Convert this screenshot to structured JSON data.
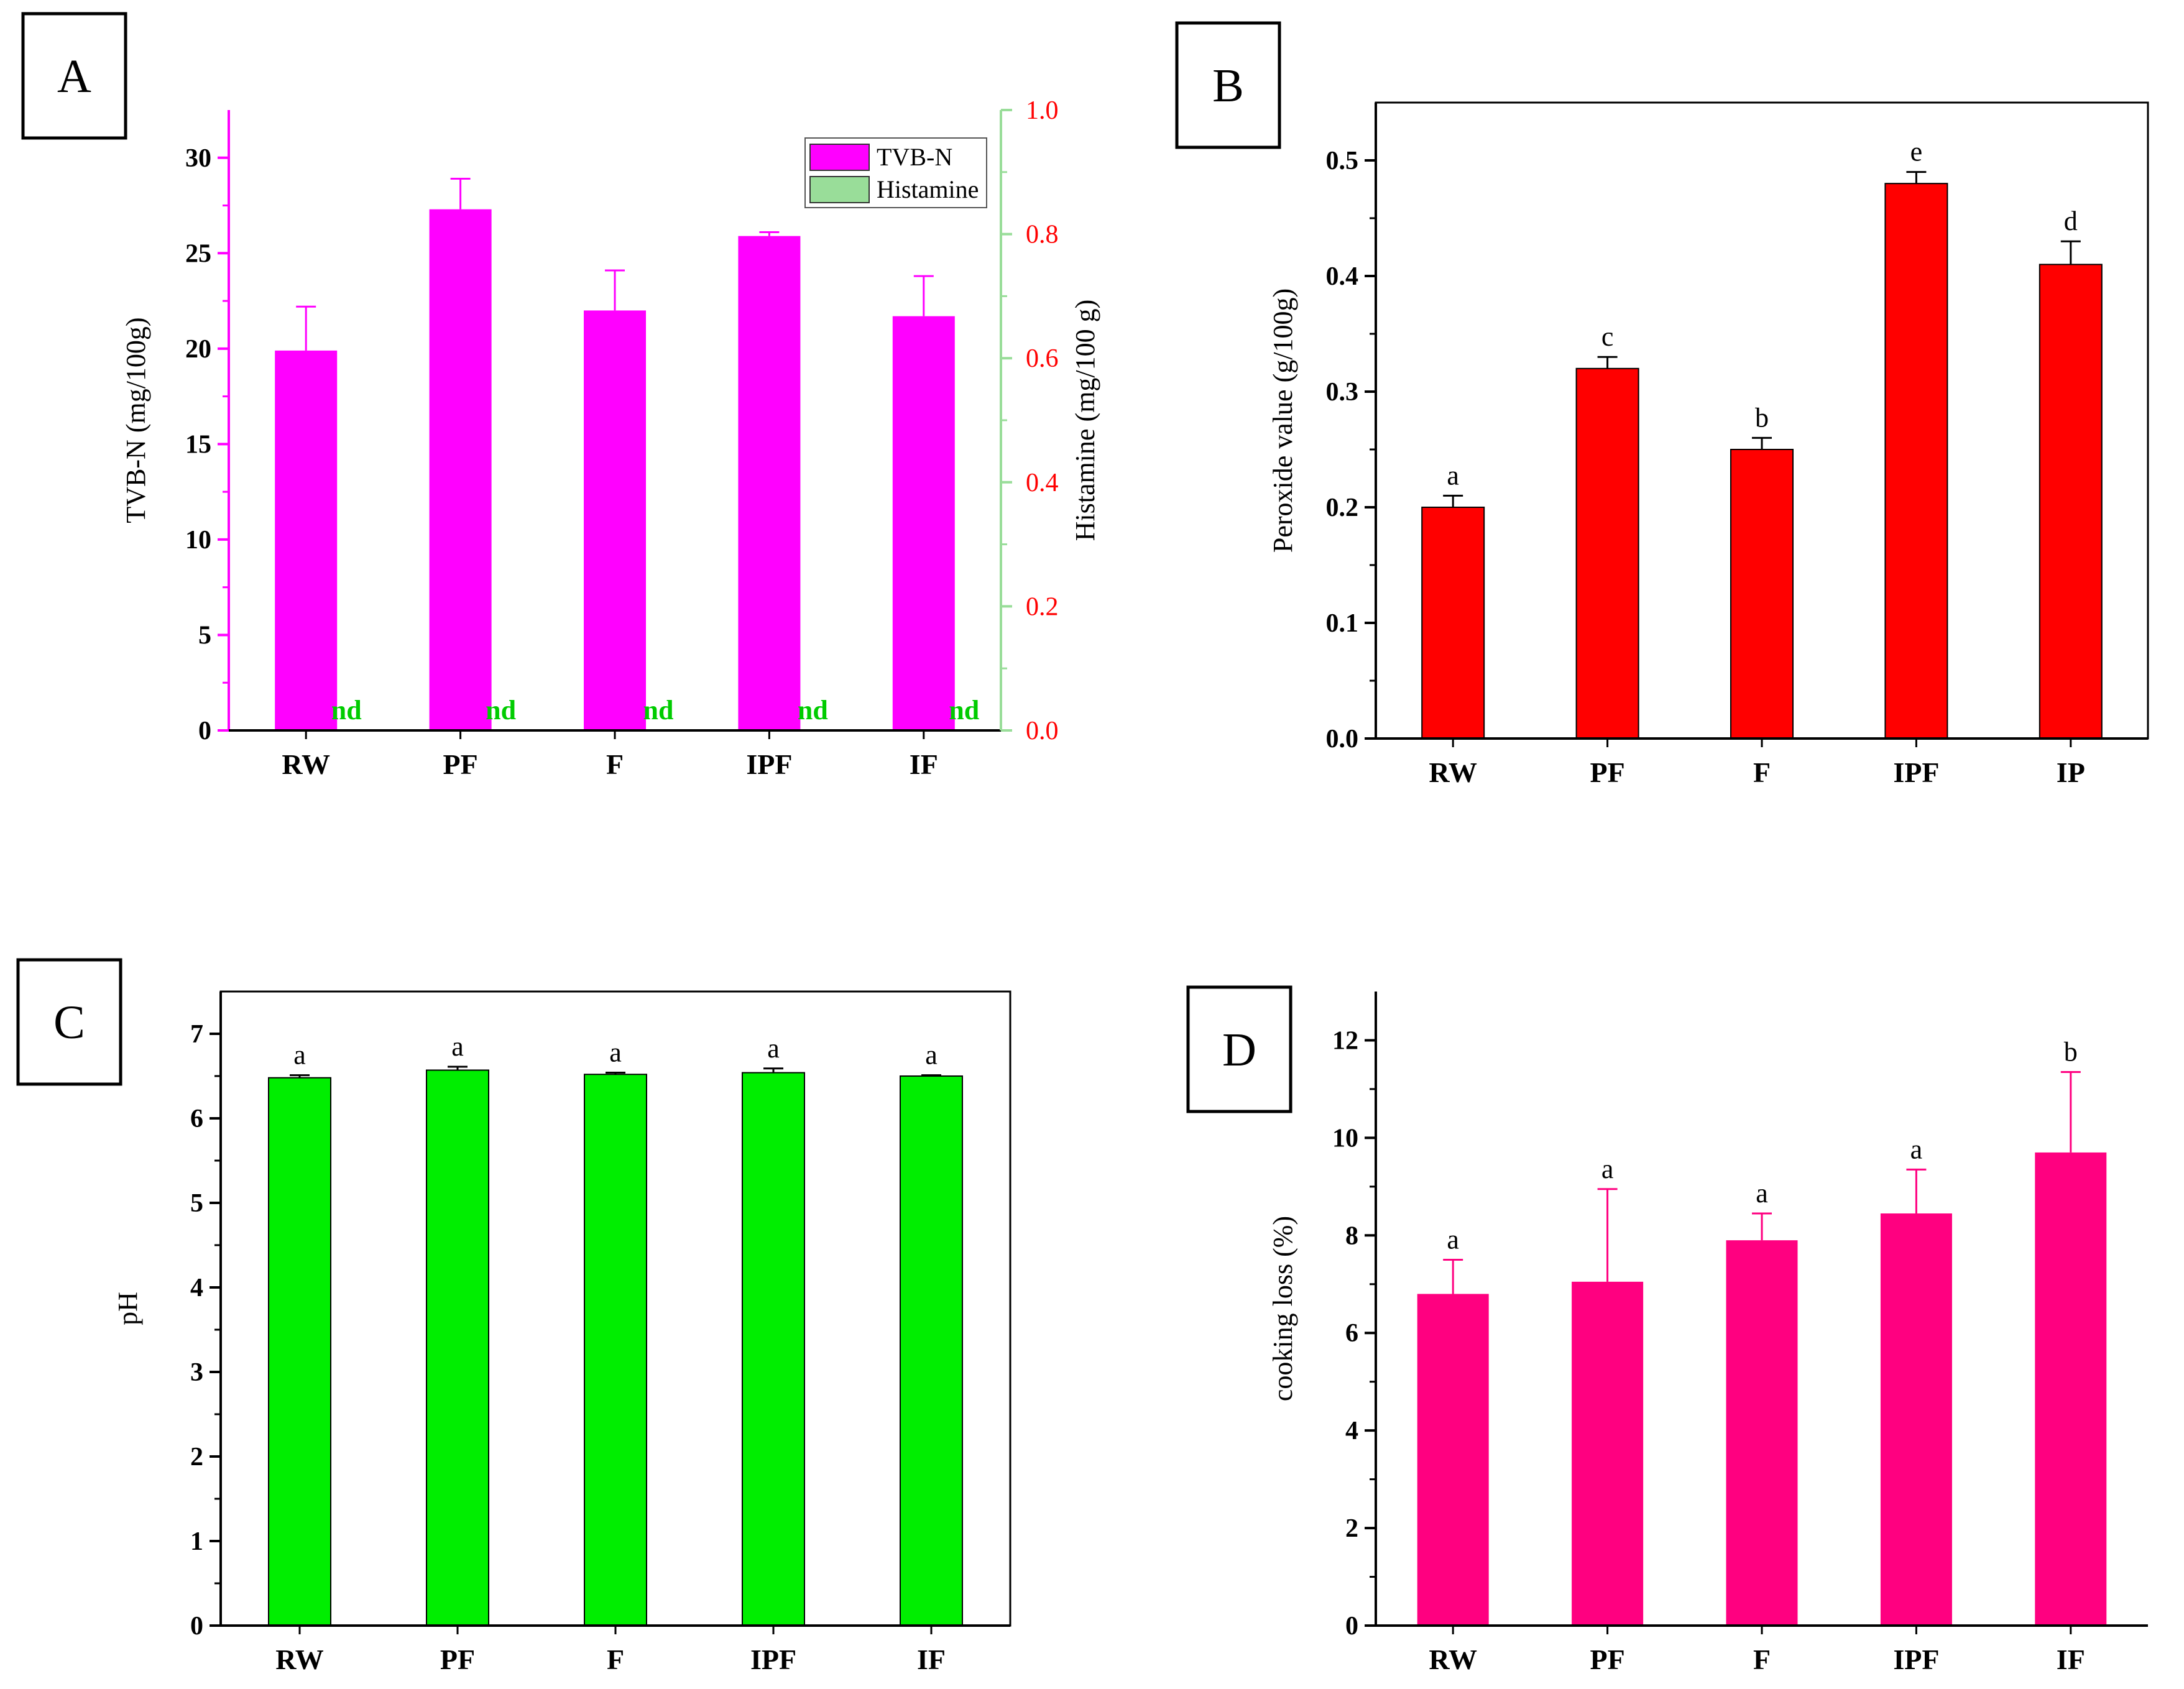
{
  "chart_data": [
    {
      "id": "A",
      "type": "bar",
      "panel_label": "A",
      "categories": [
        "RW",
        "PF",
        "F",
        "IPF",
        "IF"
      ],
      "ylabel": "TVB-N (mg/100g)",
      "ylim": [
        0,
        32.5
      ],
      "yticks": [
        0,
        5,
        10,
        15,
        20,
        25,
        30
      ],
      "y2label": "Histamine (mg/100 g)",
      "y2lim": [
        0,
        1.0
      ],
      "y2ticks": [
        "0.0",
        "0.2",
        "0.4",
        "0.6",
        "0.8",
        "1.0"
      ],
      "series": [
        {
          "name": "TVB-N",
          "color": "#ff00ff",
          "values": [
            19.9,
            27.3,
            22.0,
            25.9,
            21.7
          ],
          "errors": [
            2.3,
            1.6,
            2.1,
            0.2,
            2.1
          ]
        },
        {
          "name": "Histamine",
          "color": "#99dd99",
          "values": [
            "nd",
            "nd",
            "nd",
            "nd",
            "nd"
          ]
        }
      ],
      "legend": "top-right",
      "colors": {
        "axis_left": "#ff00ff",
        "axis_right": "#99dd99",
        "tick_right": "#ff0000",
        "nd": "#00cc00"
      }
    },
    {
      "id": "B",
      "type": "bar",
      "panel_label": "B",
      "categories": [
        "RW",
        "PF",
        "F",
        "IPF",
        "IP"
      ],
      "ylabel": "Peroxide value (g/100g)",
      "ylim": [
        0,
        0.55
      ],
      "yticks": [
        "0.0",
        "0.1",
        "0.2",
        "0.3",
        "0.4",
        "0.5"
      ],
      "series": [
        {
          "name": "Peroxide value",
          "color": "#ff0000",
          "values": [
            0.2,
            0.32,
            0.25,
            0.48,
            0.41
          ],
          "errors": [
            0.01,
            0.01,
            0.01,
            0.01,
            0.02
          ],
          "letters": [
            "a",
            "c",
            "b",
            "e",
            "d"
          ]
        }
      ]
    },
    {
      "id": "C",
      "type": "bar",
      "panel_label": "C",
      "categories": [
        "RW",
        "PF",
        "F",
        "IPF",
        "IF"
      ],
      "ylabel": "pH",
      "ylim": [
        0,
        7.5
      ],
      "yticks": [
        0,
        1,
        2,
        3,
        4,
        5,
        6,
        7
      ],
      "series": [
        {
          "name": "pH",
          "color": "#00ee00",
          "values": [
            6.48,
            6.57,
            6.52,
            6.54,
            6.5
          ],
          "errors": [
            0.03,
            0.04,
            0.02,
            0.05,
            0.01
          ],
          "letters": [
            "a",
            "a",
            "a",
            "a",
            "a"
          ]
        }
      ]
    },
    {
      "id": "D",
      "type": "bar",
      "panel_label": "D",
      "categories": [
        "RW",
        "PF",
        "F",
        "IPF",
        "IF"
      ],
      "ylabel": "cooking loss (%)",
      "ylim": [
        0,
        13
      ],
      "yticks": [
        0,
        2,
        4,
        6,
        8,
        10,
        12
      ],
      "series": [
        {
          "name": "cooking loss",
          "color": "#ff0080",
          "values": [
            6.8,
            7.05,
            7.9,
            8.45,
            9.7
          ],
          "errors": [
            0.7,
            1.9,
            0.55,
            0.9,
            1.65
          ],
          "letters": [
            "a",
            "a",
            "a",
            "a",
            "b"
          ]
        }
      ]
    }
  ]
}
